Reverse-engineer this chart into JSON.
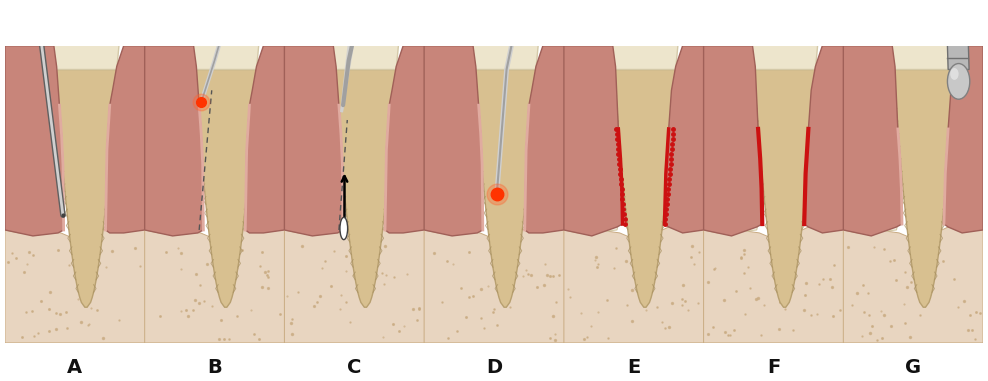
{
  "labels": [
    "A",
    "B",
    "C",
    "D",
    "E",
    "F",
    "G"
  ],
  "n_panels": 7,
  "background": "#ffffff",
  "border_color": "#222222",
  "gum_color": "#c8857a",
  "gum_edge_color": "#a06058",
  "gum_highlight": "#e0aba0",
  "tooth_color": "#ede5cc",
  "tooth_edge_color": "#d4c9a8",
  "bone_color": "#e8d5c0",
  "bone_sp_color": "#c8aa80",
  "root_color": "#d8c090",
  "root_edge_color": "#b8a070",
  "ivory_color": "#f4ede0",
  "ivory_edge": "#d4c9a8",
  "red_highlight": "#cc1111",
  "laser_red": "#ff3300",
  "laser_orange": "#ff6633",
  "instrument_light": "#d0d0d0",
  "instrument_mid": "#a0a0a0",
  "instrument_dark": "#606060",
  "label_fontsize": 14,
  "label_fontweight": "bold",
  "label_color": "#111111"
}
